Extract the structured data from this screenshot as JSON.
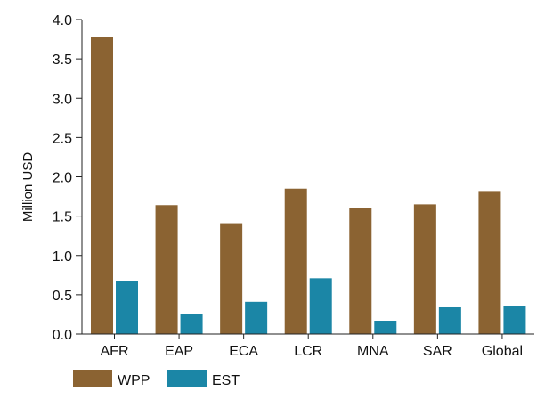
{
  "chart_data": {
    "type": "bar",
    "title": "",
    "xlabel": "",
    "ylabel": "Million USD",
    "ylim": [
      0,
      4.0
    ],
    "yticks": [
      "0.0",
      "0.5",
      "1.0",
      "1.5",
      "2.0",
      "2.5",
      "3.0",
      "3.5",
      "4.0"
    ],
    "grid": false,
    "legend_position": "bottom-left",
    "categories": [
      "AFR",
      "EAP",
      "ECA",
      "LCR",
      "MNA",
      "SAR",
      "Global"
    ],
    "series": [
      {
        "name": "WPP",
        "color": "#8B6332",
        "values": [
          3.78,
          1.64,
          1.41,
          1.85,
          1.6,
          1.65,
          1.82
        ]
      },
      {
        "name": "EST",
        "color": "#1B86A6",
        "values": [
          0.67,
          0.26,
          0.41,
          0.71,
          0.17,
          0.34,
          0.36
        ]
      }
    ]
  }
}
